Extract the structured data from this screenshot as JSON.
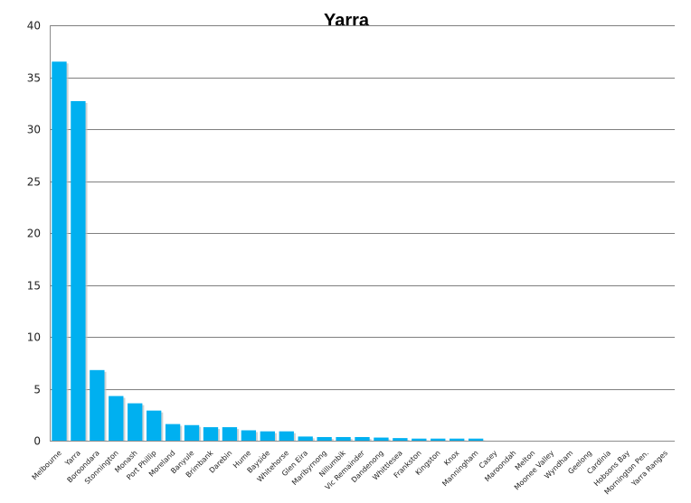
{
  "chart_data": {
    "type": "bar",
    "title": "Yarra",
    "xlabel": "",
    "ylabel": "",
    "ylim": [
      0,
      40
    ],
    "yticks": [
      0,
      5,
      10,
      15,
      20,
      25,
      30,
      35,
      40
    ],
    "grid": true,
    "legend": "none",
    "bar_color": "#00b0f0",
    "categories": [
      "Melbourne",
      "Yarra",
      "Boroondara",
      "Stonnington",
      "Monash",
      "Port Phillip",
      "Moreland",
      "Banyule",
      "Brimbank",
      "Darebin",
      "Hume",
      "Bayside",
      "Whitehorse",
      "Glen Eira",
      "Maribyrnong",
      "Nillumbik",
      "Vic Remainder",
      "Dandenong",
      "Whittlesea",
      "Frankston",
      "Kingston",
      "Knox",
      "Manningham",
      "Casey",
      "Maroondah",
      "Melton",
      "Moonee Valley",
      "Wyndham",
      "Geelong",
      "Cardinia",
      "Hobsons Bay",
      "Mornington Pen.",
      "Yarra Ranges"
    ],
    "values": [
      36.5,
      32.7,
      6.8,
      4.3,
      3.6,
      2.9,
      1.6,
      1.5,
      1.3,
      1.3,
      1.0,
      0.9,
      0.9,
      0.4,
      0.35,
      0.35,
      0.35,
      0.3,
      0.25,
      0.2,
      0.2,
      0.2,
      0.2,
      0,
      0,
      0,
      0,
      0,
      0,
      0,
      0,
      0,
      0
    ]
  }
}
